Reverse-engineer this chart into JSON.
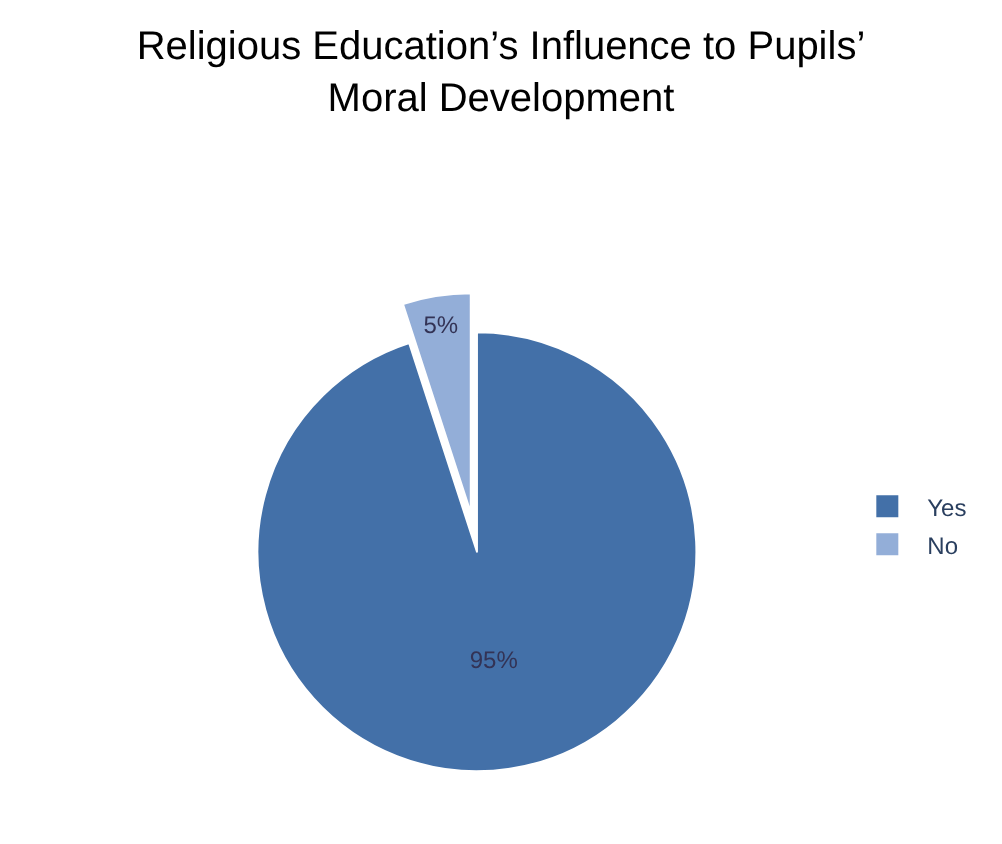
{
  "chart_data": {
    "type": "pie",
    "title": "Religious Education’s Influence to Pupils’ Moral Development",
    "categories": [
      "Yes",
      "No"
    ],
    "values": [
      95,
      5
    ],
    "colors": [
      "#4370a8",
      "#93aed8"
    ],
    "value_labels": [
      "95%",
      "5%"
    ],
    "legend": "right"
  }
}
